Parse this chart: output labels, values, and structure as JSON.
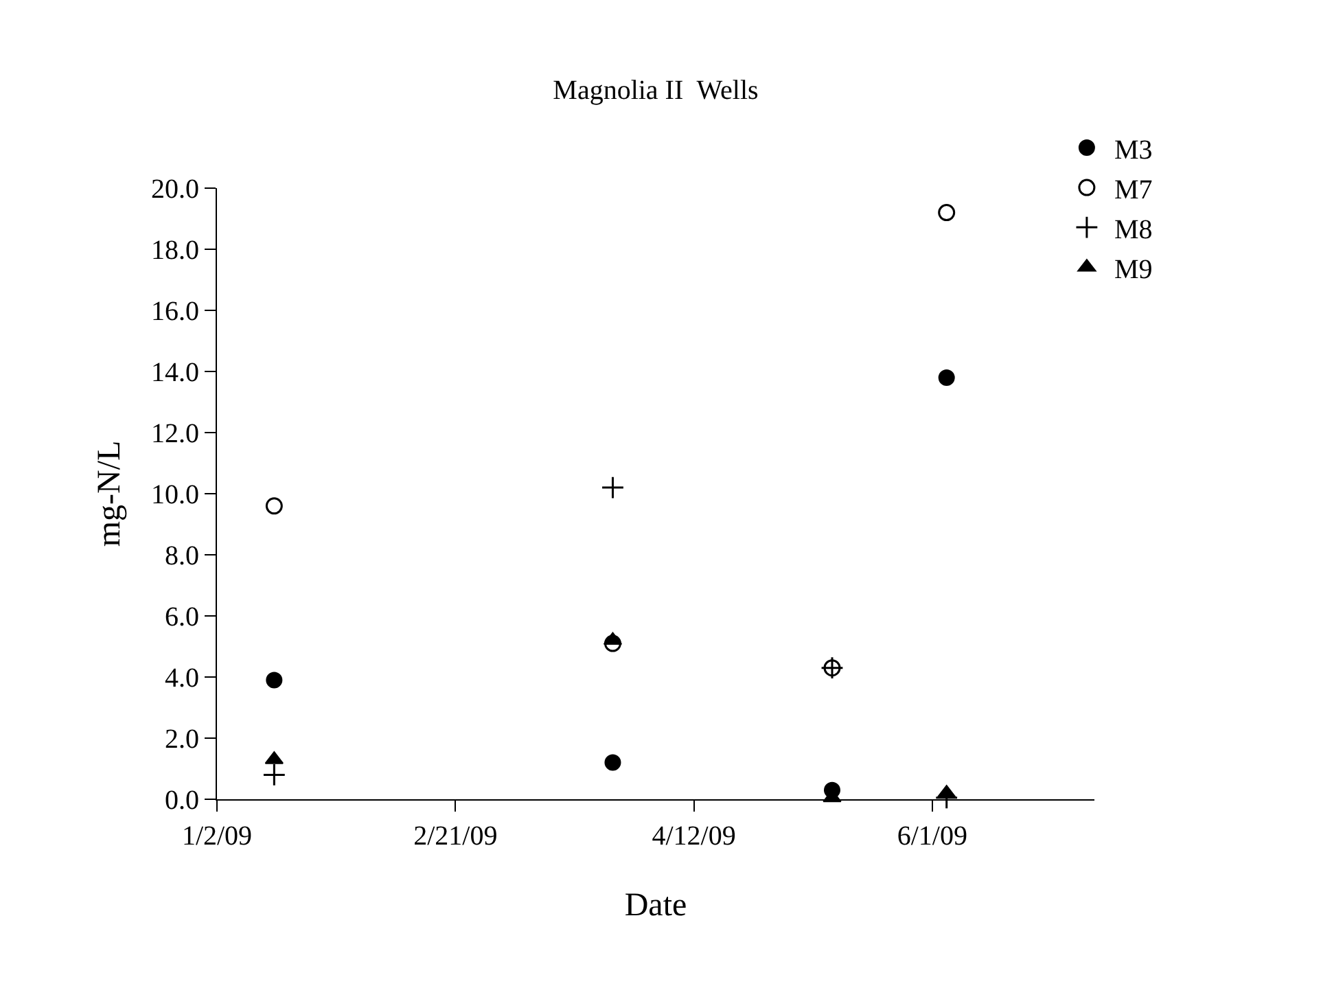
{
  "chart_data": {
    "type": "scatter",
    "title": "Magnolia II  Wells",
    "xlabel": "Date",
    "ylabel": "mg-N/L",
    "x": [
      "2009-01-14",
      "2009-03-26",
      "2009-05-11",
      "2009-06-04"
    ],
    "series": [
      {
        "name": "M3",
        "color": "#000000",
        "marker": "circle",
        "values": [
          3.9,
          1.2,
          0.3,
          13.8
        ]
      },
      {
        "name": "M7",
        "color": "#000000",
        "marker": "circle-open",
        "values": [
          9.6,
          5.1,
          4.3,
          19.2
        ]
      },
      {
        "name": "M8",
        "color": "#000000",
        "marker": "cross",
        "values": [
          0.8,
          10.2,
          4.3,
          0.05
        ]
      },
      {
        "name": "M9",
        "color": "#000000",
        "marker": "triangle",
        "values": [
          1.3,
          5.2,
          0.05,
          0.2
        ]
      }
    ],
    "xlim": [
      "2009-01-02",
      "2009-07-05"
    ],
    "xticks": [
      {
        "value": "2009-01-02",
        "label": "1/2/09"
      },
      {
        "value": "2009-02-21",
        "label": "2/21/09"
      },
      {
        "value": "2009-04-12",
        "label": "4/12/09"
      },
      {
        "value": "2009-06-01",
        "label": "6/1/09"
      }
    ],
    "ylim": [
      0,
      20
    ],
    "yticks": [
      {
        "value": 0,
        "label": "0.0"
      },
      {
        "value": 2,
        "label": "2.0"
      },
      {
        "value": 4,
        "label": "4.0"
      },
      {
        "value": 6,
        "label": "6.0"
      },
      {
        "value": 8,
        "label": "8.0"
      },
      {
        "value": 10,
        "label": "10.0"
      },
      {
        "value": 12,
        "label": "12.0"
      },
      {
        "value": 14,
        "label": "14.0"
      },
      {
        "value": 16,
        "label": "16.0"
      },
      {
        "value": 18,
        "label": "18.0"
      },
      {
        "value": 20,
        "label": "20.0"
      }
    ],
    "legend": "top right"
  }
}
